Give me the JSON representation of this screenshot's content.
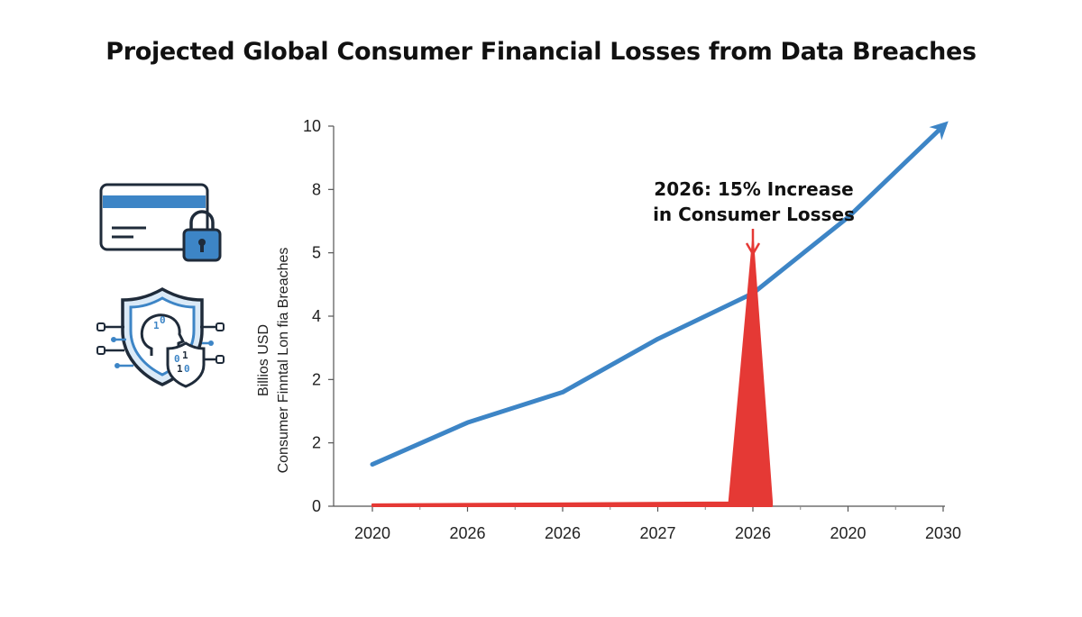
{
  "chart_data": {
    "type": "line",
    "title": "Projected Global Consumer Financial Losses from Data Breaches",
    "ylabel_lines": [
      "Billios USD",
      "Consumer Finntal Lon fia Breaches"
    ],
    "x_tick_labels": [
      "2020",
      "2026",
      "2026",
      "2027",
      "2026",
      "2020",
      "2030"
    ],
    "y_tick_labels": [
      "0",
      "2",
      "2",
      "4",
      "5",
      "8",
      "10"
    ],
    "ylim": [
      0,
      10
    ],
    "series": [
      {
        "color": "#3d85c6",
        "style": "line-arrow",
        "points": [
          [
            0,
            1.1
          ],
          [
            1,
            2.2
          ],
          [
            2,
            3.0
          ],
          [
            3,
            4.4
          ],
          [
            4,
            5.6
          ],
          [
            5,
            7.6
          ],
          [
            6,
            10.0
          ]
        ]
      },
      {
        "color": "#e53935",
        "style": "spike-area",
        "points": [
          [
            0,
            0.05
          ],
          [
            3.75,
            0.1
          ],
          [
            4.0,
            7.0
          ],
          [
            4.2,
            0.1
          ]
        ]
      }
    ],
    "annotation": {
      "lines": [
        "2026: 15% Increase",
        "in Consumer Losses"
      ],
      "target_x": 4.0,
      "color": "#e53935"
    }
  },
  "icons": [
    "credit-card-lock-icon",
    "shield-binary-face-icon"
  ]
}
